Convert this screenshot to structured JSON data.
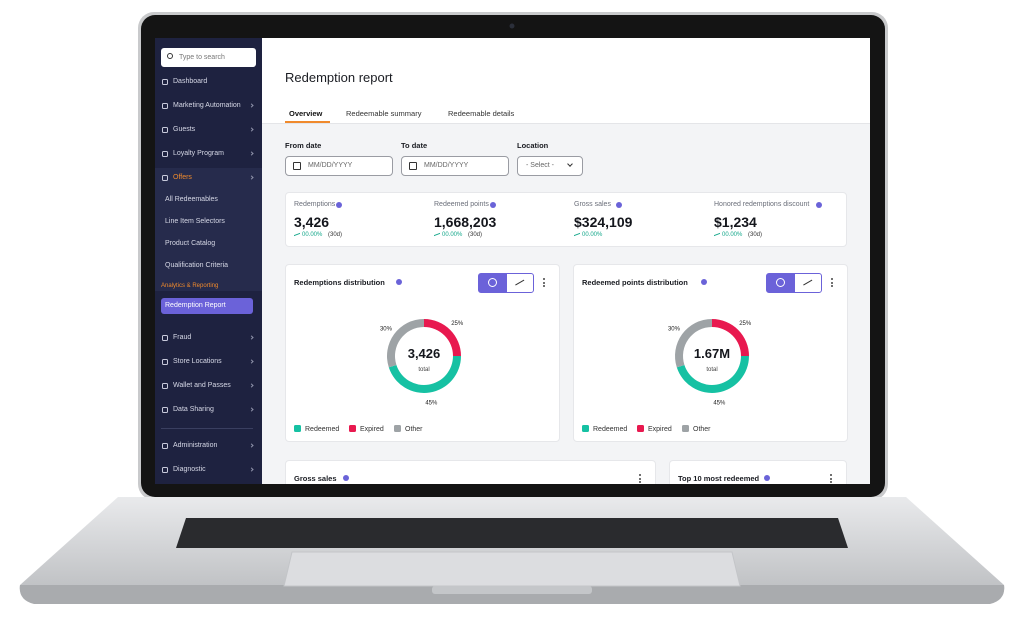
{
  "sidebar": {
    "search_placeholder": "Type to search",
    "items": [
      "Dashboard",
      "Marketing Automation",
      "Guests",
      "Loyalty Program"
    ],
    "active_group": {
      "label": "Offers",
      "children": [
        "All Redeemables",
        "Line Item Selectors",
        "Product Catalog",
        "Qualification Criteria"
      ]
    },
    "section_label": "Analytics & Reporting",
    "active_item": "Redemption Report",
    "more_items": [
      "Fraud",
      "Store Locations",
      "Wallet and Passes",
      "Data Sharing"
    ],
    "footer_items": [
      "Administration",
      "Diagnostic"
    ]
  },
  "header": {
    "title": "Redemption report",
    "tabs": [
      "Overview",
      "Redeemable summary",
      "Redeemable details"
    ]
  },
  "filters": [
    {
      "label": "From date",
      "placeholder": "MM/DD/YYYY"
    },
    {
      "label": "To date",
      "placeholder": "MM/DD/YYYY"
    },
    {
      "label": "Location",
      "placeholder": "- Select -"
    }
  ],
  "kpis": [
    {
      "label": "Redemptions",
      "value": "3,426",
      "change": "00.00%",
      "period": "(30d)"
    },
    {
      "label": "Redeemed points",
      "value": "1,668,203",
      "change": "00.00%",
      "period": "(30d)"
    },
    {
      "label": "Gross sales",
      "value": "$324,109",
      "change": "00.00%"
    },
    {
      "label": "Honored redemptions discount",
      "value": "$1,234",
      "change": "00.00%",
      "period": "(30d)"
    }
  ],
  "cards": [
    {
      "title": "Redemptions distribution",
      "center_value": "3,426",
      "center_label": "total",
      "segments": [
        {
          "name": "Redeemed",
          "value": 45,
          "label": "45%",
          "color": "#16c1a3"
        },
        {
          "name": "Expired",
          "value": 25,
          "label": "25%",
          "color": "#e8194f"
        },
        {
          "name": "Other",
          "value": 30,
          "label": "30%",
          "color": "#9ea3a6"
        }
      ]
    },
    {
      "title": "Redeemed points distribution",
      "center_value": "1.67M",
      "center_label": "total",
      "segments": [
        {
          "name": "Redeemed",
          "value": 45,
          "label": "45%",
          "color": "#16c1a3"
        },
        {
          "name": "Expired",
          "value": 25,
          "label": "25%",
          "color": "#e8194f"
        },
        {
          "name": "Other",
          "value": 30,
          "label": "30%",
          "color": "#9ea3a6"
        }
      ]
    }
  ],
  "bottom_cards": [
    "Gross sales",
    "Top 10 most redeemed"
  ]
}
